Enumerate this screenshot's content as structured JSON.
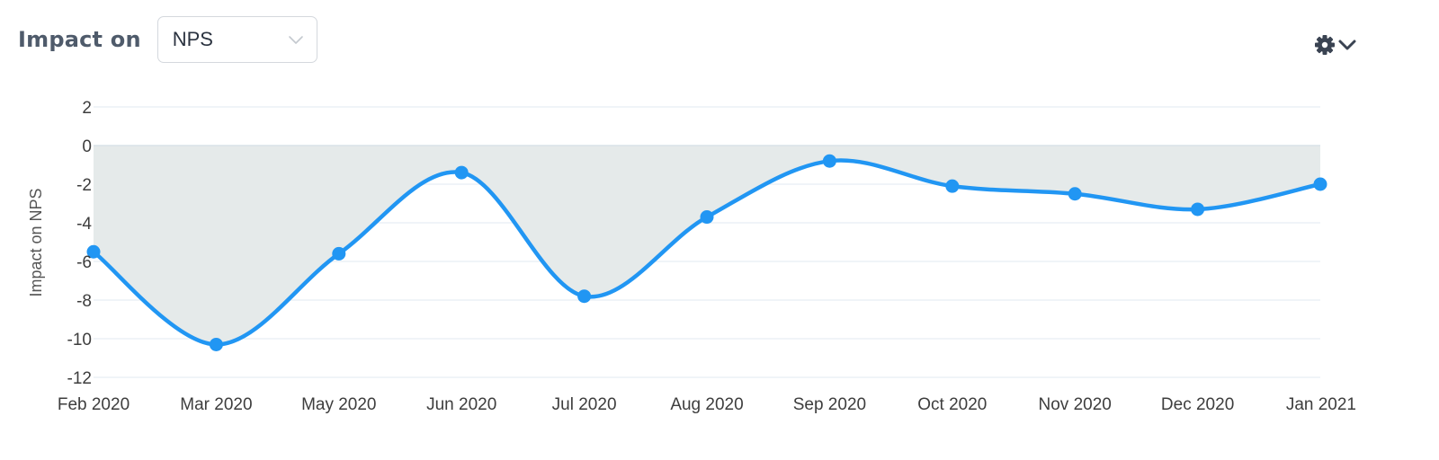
{
  "header": {
    "impact_label": "Impact on",
    "metric_select": {
      "selected": "NPS"
    },
    "icons": {
      "select_chevron": "chevron-down-icon",
      "settings": "gear-icon",
      "settings_chevron": "chevron-down-icon"
    }
  },
  "colors": {
    "line": "#2196f3",
    "area_fill": "#e5eaea",
    "grid": "#e6eef4",
    "text": "#3d3d3d"
  },
  "chart_data": {
    "type": "area",
    "title": "",
    "xlabel": "",
    "ylabel": "Impact on NPS",
    "categories": [
      "Feb 2020",
      "Mar 2020",
      "May 2020",
      "Jun 2020",
      "Jul 2020",
      "Aug 2020",
      "Sep 2020",
      "Oct 2020",
      "Nov 2020",
      "Dec 2020",
      "Jan 2021"
    ],
    "series": [
      {
        "values": [
          -5.5,
          -10.3,
          -5.6,
          -1.4,
          -7.8,
          -3.7,
          -0.8,
          -2.1,
          -2.5,
          -3.3,
          -2.0
        ]
      }
    ],
    "ylim": [
      -12,
      2
    ],
    "yticks": [
      2,
      0,
      -2,
      -4,
      -6,
      -8,
      -10,
      -12
    ],
    "grid": true,
    "smooth": true,
    "markers": true,
    "baseline": 0
  }
}
